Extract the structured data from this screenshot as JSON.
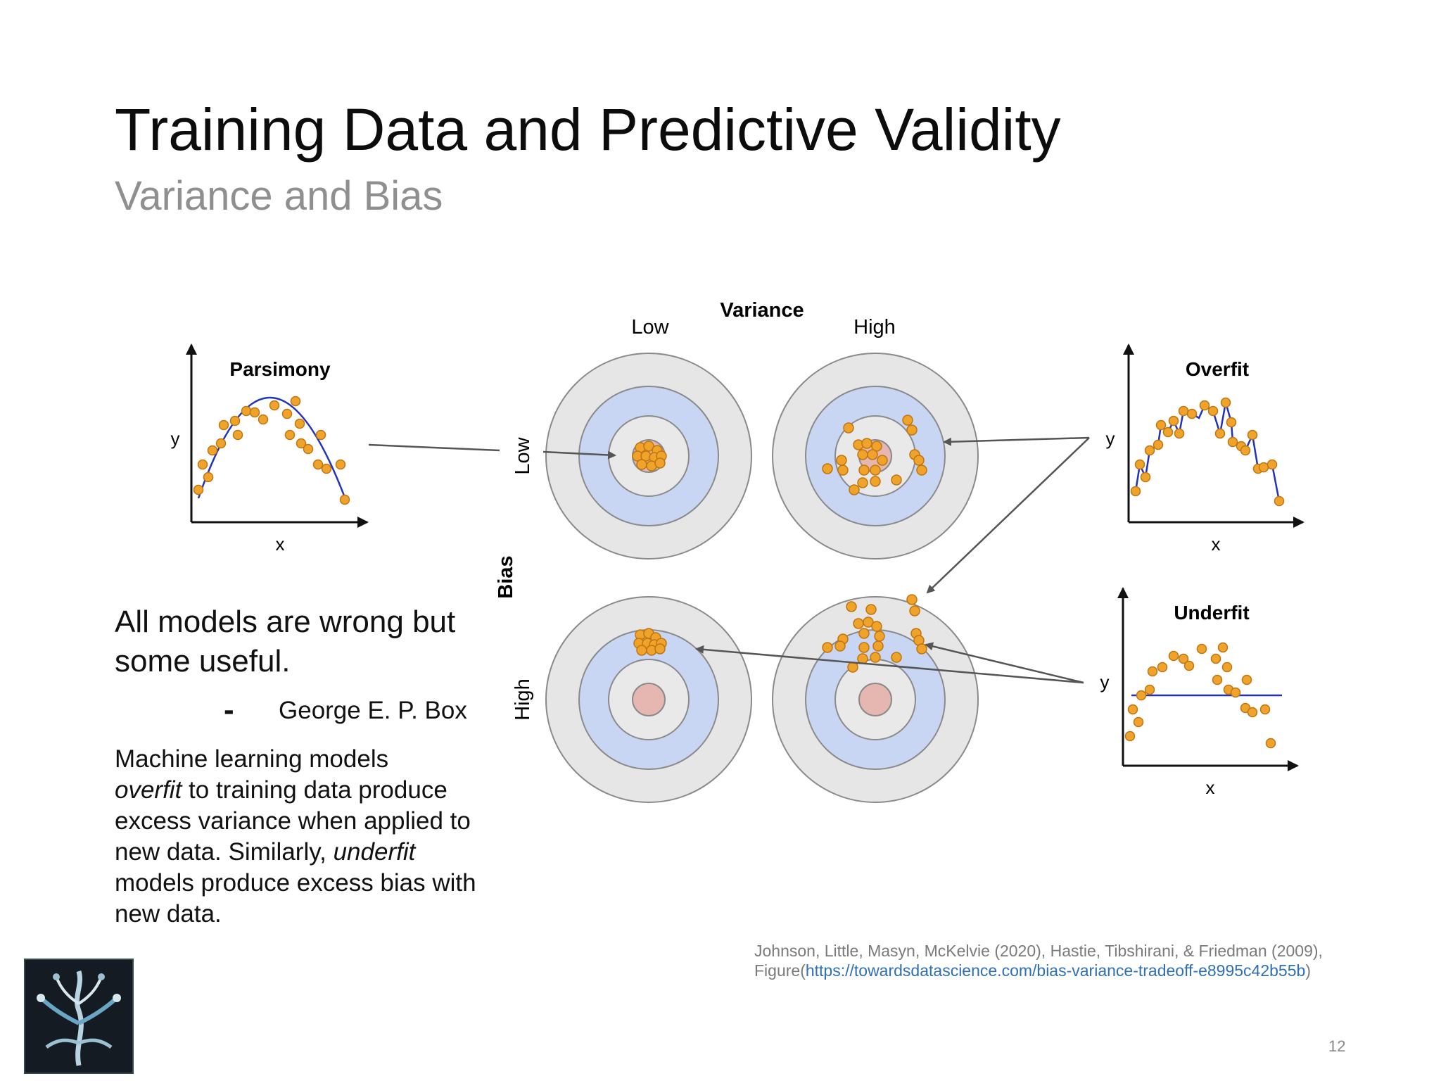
{
  "header": {
    "title": "Training Data and Predictive Validity",
    "subtitle": "Variance and Bias"
  },
  "diagram": {
    "variance_label": "Variance",
    "variance_low": "Low",
    "variance_high": "High",
    "bias_label": "Bias",
    "bias_low": "Low",
    "bias_high": "High",
    "plots": {
      "parsimony": {
        "title": "Parsimony",
        "x_label": "x",
        "y_label": "y"
      },
      "overfit": {
        "title": "Overfit",
        "x_label": "x",
        "y_label": "y"
      },
      "underfit": {
        "title": "Underfit",
        "x_label": "x",
        "y_label": "y"
      }
    },
    "colors": {
      "point_fill": "#f0a32a",
      "point_stroke": "#c07510",
      "fit_line": "#2233bb",
      "ring_outer": "#e6e6e6",
      "ring_blue": "#c8d6f4",
      "ring_inner": "#e9e9e9",
      "bullseye": "#e6b7b0"
    }
  },
  "quote": {
    "text": "All models are wrong but some useful.",
    "dash": "-",
    "author": "George E. P. Box"
  },
  "body": {
    "line1": "Machine learning models",
    "overfit_word": "overfit",
    "line2_rest": " to training data produce excess variance when applied to new data. Similarly, ",
    "underfit_word": "underfit",
    "line3_rest": " models produce excess bias with new data."
  },
  "citation": {
    "line1": "Johnson, Little, Masyn, McKelvie (2020), Hastie, Tibshirani, & Friedman (2009),",
    "prefix": "Figure(",
    "url": "https://towardsdatascience.com/bias-variance-tradeoff-e8995c42b55b",
    "suffix": ")"
  },
  "footer": {
    "page_number": "12"
  }
}
